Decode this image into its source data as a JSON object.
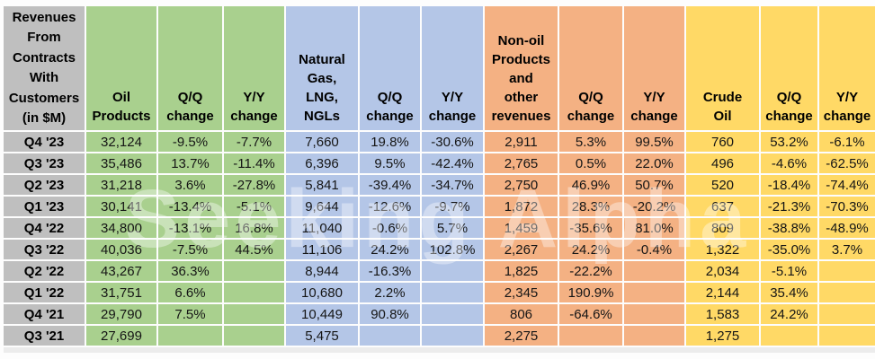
{
  "watermark": "Seeking Alpha",
  "chart_data": {
    "type": "table",
    "title": "Revenues From Contracts With Customers (in $M)",
    "corner_title": "Revenues\nFrom\nContracts\nWith\nCustomers\n(in $M)",
    "groups": [
      {
        "name": "oil-products",
        "color": "#A9D08E",
        "headers": [
          "Oil\nProducts",
          "Q/Q\nchange",
          "Y/Y\nchange"
        ]
      },
      {
        "name": "natural-gas-lng-ngls",
        "color": "#B4C6E7",
        "headers": [
          "Natural\nGas,\nLNG,\nNGLs",
          "Q/Q\nchange",
          "Y/Y\nchange"
        ]
      },
      {
        "name": "non-oil-products-other",
        "color": "#F4B183",
        "headers": [
          "Non-oil\nProducts\nand\nother\nrevenues",
          "Q/Q\nchange",
          "Y/Y\nchange"
        ]
      },
      {
        "name": "crude-oil",
        "color": "#FFD966",
        "headers": [
          "Crude\nOil",
          "Q/Q\nchange",
          "Y/Y\nchange"
        ]
      }
    ],
    "label_column_color": "#BFBFBF",
    "rows": [
      {
        "label": "Q4 '23",
        "cells": [
          "32,124",
          "-9.5%",
          "-7.7%",
          "7,660",
          "19.8%",
          "-30.6%",
          "2,911",
          "5.3%",
          "99.5%",
          "760",
          "53.2%",
          "-6.1%"
        ]
      },
      {
        "label": "Q3 '23",
        "cells": [
          "35,486",
          "13.7%",
          "-11.4%",
          "6,396",
          "9.5%",
          "-42.4%",
          "2,765",
          "0.5%",
          "22.0%",
          "496",
          "-4.6%",
          "-62.5%"
        ]
      },
      {
        "label": "Q2 '23",
        "cells": [
          "31,218",
          "3.6%",
          "-27.8%",
          "5,841",
          "-39.4%",
          "-34.7%",
          "2,750",
          "46.9%",
          "50.7%",
          "520",
          "-18.4%",
          "-74.4%"
        ]
      },
      {
        "label": "Q1 '23",
        "cells": [
          "30,141",
          "-13.4%",
          "-5.1%",
          "9,644",
          "-12.6%",
          "-9.7%",
          "1,872",
          "28.3%",
          "-20.2%",
          "637",
          "-21.3%",
          "-70.3%"
        ]
      },
      {
        "label": "Q4 '22",
        "cells": [
          "34,800",
          "-13.1%",
          "16.8%",
          "11,040",
          "-0.6%",
          "5.7%",
          "1,459",
          "-35.6%",
          "81.0%",
          "809",
          "-38.8%",
          "-48.9%"
        ]
      },
      {
        "label": "Q3 '22",
        "cells": [
          "40,036",
          "-7.5%",
          "44.5%",
          "11,106",
          "24.2%",
          "102.8%",
          "2,267",
          "24.2%",
          "-0.4%",
          "1,322",
          "-35.0%",
          "3.7%"
        ]
      },
      {
        "label": "Q2 '22",
        "cells": [
          "43,267",
          "36.3%",
          "",
          "8,944",
          "-16.3%",
          "",
          "1,825",
          "-22.2%",
          "",
          "2,034",
          "-5.1%",
          ""
        ]
      },
      {
        "label": "Q1 '22",
        "cells": [
          "31,751",
          "6.6%",
          "",
          "10,680",
          "2.2%",
          "",
          "2,345",
          "190.9%",
          "",
          "2,144",
          "35.4%",
          ""
        ]
      },
      {
        "label": "Q4 '21",
        "cells": [
          "29,790",
          "7.5%",
          "",
          "10,449",
          "90.8%",
          "",
          "806",
          "-64.6%",
          "",
          "1,583",
          "24.2%",
          ""
        ]
      },
      {
        "label": "Q3 '21",
        "cells": [
          "27,699",
          "",
          "",
          "5,475",
          "",
          "",
          "2,275",
          "",
          "",
          "1,275",
          "",
          ""
        ]
      }
    ]
  }
}
